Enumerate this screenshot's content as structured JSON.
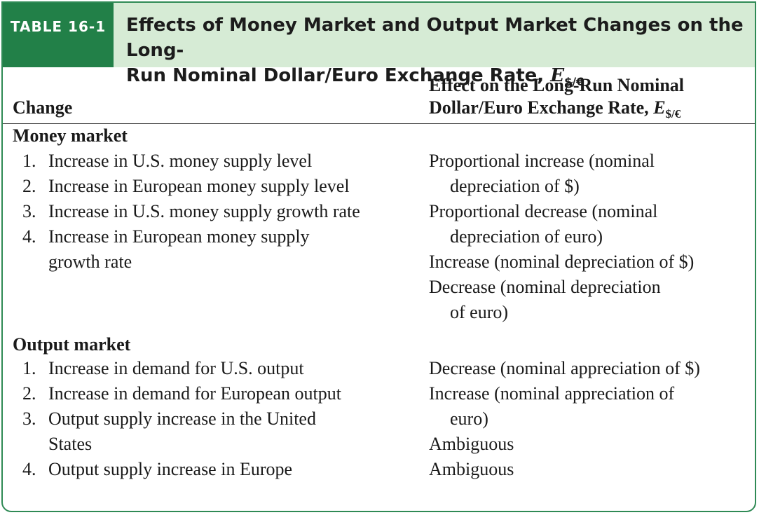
{
  "table": {
    "label": "TABLE 16-1",
    "title_line1": "Effects of Money Market and Output Market Changes on the Long-",
    "title_line2": "Run Nominal Dollar/Euro Exchange Rate,",
    "title_symbol": "E",
    "title_subscript": "$/€"
  },
  "columns": {
    "change_header": "Change",
    "effect_header_line1": "Effect on the Long-Run Nominal",
    "effect_header_line2": "Dollar/Euro Exchange Rate,",
    "effect_symbol": "E",
    "effect_subscript": "$/€"
  },
  "money_market": {
    "heading": "Money market",
    "changes": [
      {
        "num": "1.",
        "lines": [
          "Increase in U.S. money supply level"
        ]
      },
      {
        "num": "2.",
        "lines": [
          "Increase in European money supply level"
        ]
      },
      {
        "num": "3.",
        "lines": [
          "Increase in U.S. money supply growth rate"
        ]
      },
      {
        "num": "4.",
        "lines": [
          "Increase in European money supply",
          "growth rate"
        ]
      }
    ],
    "effects": [
      {
        "first": "Proportional increase (nominal",
        "cont": "depreciation of $)"
      },
      {
        "first": "Proportional decrease (nominal",
        "cont": "depreciation of euro)"
      },
      {
        "first": "Increase (nominal depreciation of $)",
        "cont": ""
      },
      {
        "first": "Decrease (nominal depreciation",
        "cont": "of euro)"
      }
    ]
  },
  "output_market": {
    "heading": "Output market",
    "changes": [
      {
        "num": "1.",
        "lines": [
          "Increase in demand for U.S. output"
        ]
      },
      {
        "num": "2.",
        "lines": [
          "Increase in demand for European output"
        ]
      },
      {
        "num": "3.",
        "lines": [
          "Output supply increase in the United",
          "States"
        ]
      },
      {
        "num": "4.",
        "lines": [
          "Output supply increase in Europe"
        ]
      }
    ],
    "effects": [
      {
        "first": "Decrease (nominal appreciation of $)",
        "cont": ""
      },
      {
        "first": "Increase (nominal appreciation of",
        "cont": "euro)"
      },
      {
        "first": "Ambiguous",
        "cont": ""
      },
      {
        "first": "Ambiguous",
        "cont": ""
      }
    ]
  }
}
